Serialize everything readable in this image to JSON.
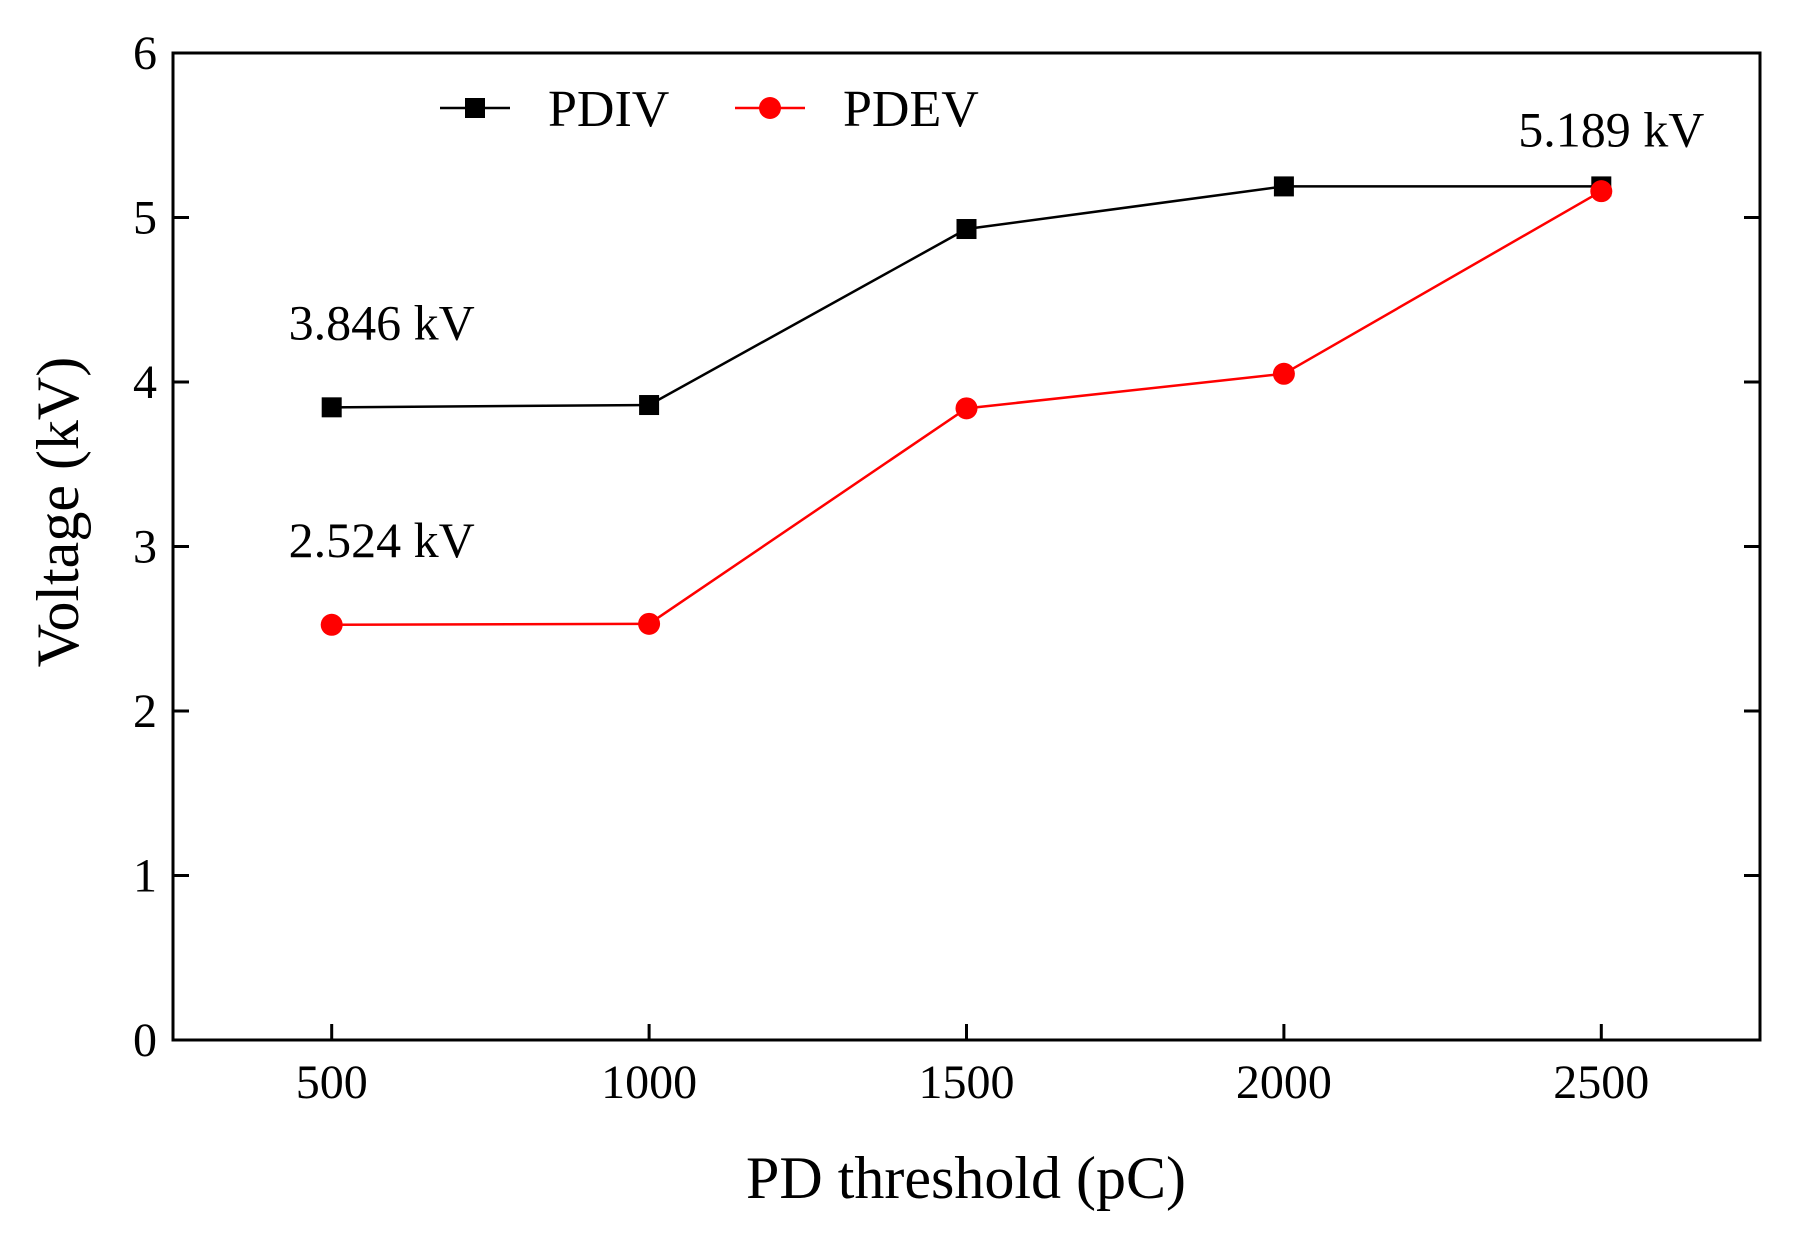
{
  "chart_data": {
    "type": "line",
    "title": "",
    "xlabel": "PD threshold (pC)",
    "ylabel": "Voltage (kV)",
    "x": [
      500,
      1000,
      1500,
      2000,
      2500
    ],
    "xticks": [
      "500",
      "1000",
      "1500",
      "2000",
      "2500"
    ],
    "yticks": [
      "0",
      "1",
      "2",
      "3",
      "4",
      "5",
      "6"
    ],
    "xlim": [
      250,
      2750
    ],
    "ylim": [
      0,
      6
    ],
    "grid": false,
    "legend_position": "top-left",
    "series": [
      {
        "name": "PDIV",
        "marker": "square",
        "color": "#000000",
        "values": [
          3.846,
          3.86,
          4.93,
          5.189,
          5.189
        ]
      },
      {
        "name": "PDEV",
        "marker": "circle",
        "color": "#ff0000",
        "values": [
          2.524,
          2.53,
          3.84,
          4.05,
          5.16
        ]
      }
    ],
    "annotations": [
      {
        "text": "3.846 kV",
        "x": 500,
        "y": 3.846
      },
      {
        "text": "2.524 kV",
        "x": 500,
        "y": 2.524
      },
      {
        "text": "5.189 kV",
        "x": 2500,
        "y": 5.189
      }
    ]
  }
}
